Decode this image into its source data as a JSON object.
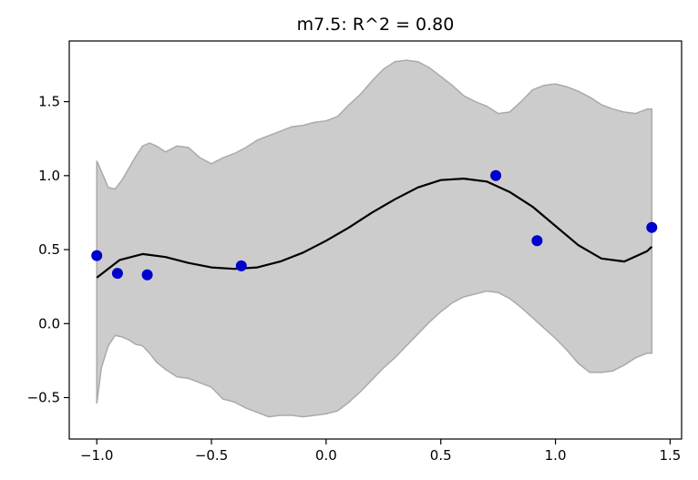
{
  "chart_data": {
    "type": "line",
    "title": "m7.5: R^2 = 0.80",
    "xlabel": "",
    "ylabel": "",
    "xlim": [
      -1.12,
      1.55
    ],
    "ylim": [
      -0.78,
      1.91
    ],
    "xticks": [
      -1.0,
      -0.5,
      0.0,
      0.5,
      1.0,
      1.5
    ],
    "xtick_labels": [
      "−1.0",
      "−0.5",
      "0.0",
      "0.5",
      "1.0",
      "1.5"
    ],
    "yticks": [
      -0.5,
      0.0,
      0.5,
      1.0,
      1.5
    ],
    "ytick_labels": [
      "−0.5",
      "0.0",
      "0.5",
      "1.0",
      "1.5"
    ],
    "grid": false,
    "colors": {
      "points": "#0000cc",
      "line": "#000000",
      "band": "#cccccc",
      "band_edge": "#aaaaaa"
    },
    "points": {
      "x": [
        -1.0,
        -0.91,
        -0.78,
        -0.37,
        0.74,
        0.92,
        1.42
      ],
      "y": [
        0.46,
        0.34,
        0.33,
        0.39,
        1.0,
        0.56,
        0.65
      ]
    },
    "fit": {
      "x": [
        -1.0,
        -0.9,
        -0.8,
        -0.7,
        -0.6,
        -0.5,
        -0.4,
        -0.3,
        -0.2,
        -0.1,
        0.0,
        0.1,
        0.2,
        0.3,
        0.4,
        0.5,
        0.6,
        0.7,
        0.8,
        0.9,
        1.0,
        1.1,
        1.2,
        1.3,
        1.4,
        1.42
      ],
      "y": [
        0.31,
        0.43,
        0.47,
        0.45,
        0.41,
        0.38,
        0.37,
        0.38,
        0.42,
        0.48,
        0.56,
        0.65,
        0.75,
        0.84,
        0.92,
        0.97,
        0.98,
        0.96,
        0.89,
        0.79,
        0.66,
        0.53,
        0.44,
        0.42,
        0.49,
        0.52
      ]
    },
    "band": {
      "x": [
        -1.0,
        -0.98,
        -0.95,
        -0.92,
        -0.89,
        -0.86,
        -0.83,
        -0.8,
        -0.77,
        -0.74,
        -0.7,
        -0.65,
        -0.6,
        -0.55,
        -0.5,
        -0.45,
        -0.4,
        -0.35,
        -0.3,
        -0.25,
        -0.2,
        -0.15,
        -0.1,
        -0.05,
        0.0,
        0.05,
        0.1,
        0.15,
        0.2,
        0.25,
        0.3,
        0.35,
        0.4,
        0.45,
        0.5,
        0.55,
        0.6,
        0.65,
        0.7,
        0.75,
        0.8,
        0.85,
        0.9,
        0.95,
        1.0,
        1.05,
        1.1,
        1.15,
        1.2,
        1.25,
        1.3,
        1.35,
        1.4,
        1.42
      ],
      "upper": [
        1.1,
        1.03,
        0.92,
        0.91,
        0.97,
        1.05,
        1.13,
        1.2,
        1.22,
        1.2,
        1.16,
        1.2,
        1.19,
        1.12,
        1.08,
        1.12,
        1.15,
        1.19,
        1.24,
        1.27,
        1.3,
        1.33,
        1.34,
        1.36,
        1.37,
        1.4,
        1.48,
        1.55,
        1.64,
        1.72,
        1.77,
        1.78,
        1.77,
        1.73,
        1.67,
        1.61,
        1.54,
        1.5,
        1.47,
        1.42,
        1.43,
        1.5,
        1.58,
        1.61,
        1.62,
        1.6,
        1.57,
        1.53,
        1.48,
        1.45,
        1.43,
        1.42,
        1.45,
        1.45
      ],
      "lower": [
        -0.54,
        -0.3,
        -0.15,
        -0.08,
        -0.09,
        -0.11,
        -0.14,
        -0.15,
        -0.2,
        -0.26,
        -0.31,
        -0.36,
        -0.37,
        -0.4,
        -0.43,
        -0.51,
        -0.53,
        -0.57,
        -0.6,
        -0.63,
        -0.62,
        -0.62,
        -0.63,
        -0.62,
        -0.61,
        -0.59,
        -0.53,
        -0.46,
        -0.38,
        -0.3,
        -0.23,
        -0.15,
        -0.07,
        0.01,
        0.08,
        0.14,
        0.18,
        0.2,
        0.22,
        0.21,
        0.17,
        0.11,
        0.04,
        -0.03,
        -0.1,
        -0.18,
        -0.27,
        -0.33,
        -0.33,
        -0.32,
        -0.28,
        -0.23,
        -0.2,
        -0.2
      ]
    }
  }
}
